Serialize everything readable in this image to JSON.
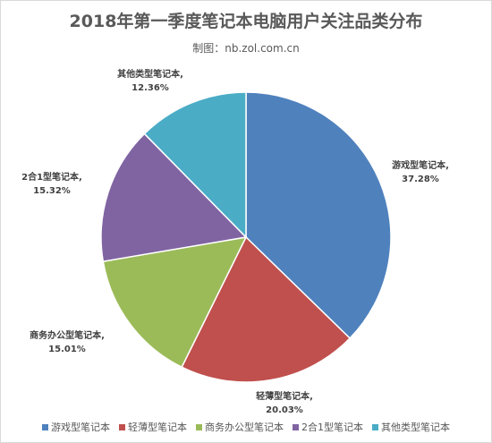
{
  "page": {
    "title": "2018年第一季度笔记本电脑用户关注品类分布",
    "subtitle": "制图：nb.zol.com.cn"
  },
  "chart_data": {
    "type": "pie",
    "title": "2018年第一季度笔记本电脑用户关注品类分布",
    "subtitle": "制图：nb.zol.com.cn",
    "legend_position": "bottom",
    "start_angle": "12 o'clock",
    "direction": "clockwise",
    "slices": [
      {
        "name": "游戏型笔记本",
        "label": "游戏型笔记本,",
        "value_label": "37.28%",
        "value": 37.28,
        "color": "#4f81bd"
      },
      {
        "name": "轻薄型笔记本",
        "label": "轻薄型笔记本,",
        "value_label": "20.03%",
        "value": 20.03,
        "color": "#c0504d"
      },
      {
        "name": "商务办公型笔记本",
        "label": "商务办公型笔记本,",
        "value_label": "15.01%",
        "value": 15.01,
        "color": "#9bbb59"
      },
      {
        "name": "2合1型笔记本",
        "label": "2合1型笔记本,",
        "value_label": "15.32%",
        "value": 15.32,
        "color": "#8064a2"
      },
      {
        "name": "其他类型笔记本",
        "label": "其他类型笔记本,",
        "value_label": "12.36%",
        "value": 12.36,
        "color": "#4bacc6"
      }
    ]
  }
}
